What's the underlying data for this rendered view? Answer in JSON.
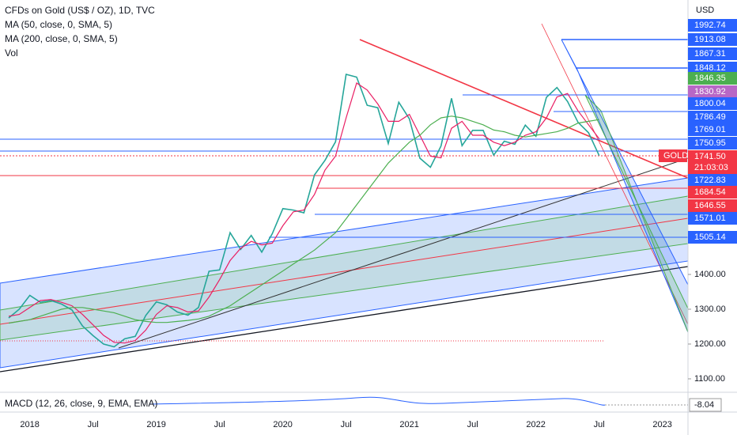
{
  "chart_data": {
    "type": "line",
    "title": "CFDs on Gold (US$ / OZ), 1D, TVC",
    "volume_label": "Vol",
    "currency": "USD",
    "symbol": "GOLD",
    "countdown": "21:03:03",
    "macd_label": "MACD (12, 26, close, 9, EMA, EMA)",
    "macd_value": -8.04,
    "categories": [
      null,
      null,
      "2018",
      null,
      null,
      null,
      null,
      null,
      "Jul",
      null,
      null,
      null,
      null,
      null,
      "2019",
      null,
      null,
      null,
      null,
      null,
      "Jul",
      null,
      null,
      null,
      null,
      null,
      "2020",
      null,
      null,
      null,
      null,
      null,
      "Jul",
      null,
      null,
      null,
      null,
      null,
      "2021",
      null,
      null,
      null,
      null,
      null,
      "Jul",
      null,
      null,
      null,
      null,
      null,
      "2022",
      null,
      null,
      null,
      null,
      null,
      "Jul",
      null,
      null,
      null,
      null,
      null,
      "2023",
      null,
      null
    ],
    "series": [
      {
        "name": null,
        "color": "#26a69a",
        "values": [
          1275,
          1300,
          1340,
          1320,
          1325,
          1315,
          1298,
          1252,
          1224,
          1200,
          1192,
          1215,
          1222,
          1282,
          1321,
          1313,
          1292,
          1283,
          1305,
          1409,
          1413,
          1520,
          1472,
          1512,
          1464,
          1517,
          1589,
          1585,
          1577,
          1686,
          1728,
          1781,
          1975,
          1967,
          1886,
          1879,
          1776,
          1895,
          1847,
          1734,
          1708,
          1769,
          1906,
          1770,
          1814,
          1814,
          1743,
          1783,
          1774,
          1829,
          1797,
          1909,
          1937,
          1897,
          1837,
          1807,
          1741.5,
          null,
          null,
          null,
          null,
          null,
          null,
          null,
          null
        ]
      },
      {
        "name": "MA (50, close, 0, SMA, 5)",
        "color": "#e91e63",
        "values": [
          1280,
          1285,
          1305,
          1325,
          1328,
          1320,
          1310,
          1285,
          1255,
          1225,
          1205,
          1203,
          1210,
          1240,
          1285,
          1310,
          1305,
          1292,
          1295,
          1335,
          1385,
          1440,
          1475,
          1495,
          1485,
          1490,
          1540,
          1580,
          1585,
          1630,
          1700,
          1740,
          1850,
          1950,
          1930,
          1890,
          1840,
          1840,
          1860,
          1800,
          1740,
          1735,
          1820,
          1840,
          1800,
          1800,
          1780,
          1770,
          1780,
          1800,
          1810,
          1850,
          1910,
          1920,
          1870,
          1830,
          1790,
          null,
          null,
          null,
          null,
          null,
          null,
          null,
          null
        ]
      },
      {
        "name": "MA (200, close, 0, SMA, 5)",
        "color": "#4caf50",
        "values": [
          1260,
          1265,
          1270,
          1280,
          1290,
          1300,
          1305,
          1305,
          1300,
          1295,
          1290,
          1280,
          1270,
          1265,
          1262,
          1262,
          1265,
          1268,
          1272,
          1280,
          1295,
          1310,
          1330,
          1350,
          1370,
          1390,
          1410,
          1430,
          1450,
          1470,
          1495,
          1520,
          1560,
          1600,
          1640,
          1680,
          1720,
          1750,
          1780,
          1800,
          1830,
          1850,
          1855,
          1850,
          1840,
          1830,
          1815,
          1810,
          1800,
          1795,
          1800,
          1805,
          1810,
          1820,
          1835,
          1840,
          1845,
          null,
          null,
          null,
          null,
          null,
          null,
          null,
          null
        ]
      }
    ],
    "ylim": [
      1063.6,
      2188.6
    ],
    "yticks": [
      {
        "value": 1400,
        "label": "1400.00"
      },
      {
        "value": 1300,
        "label": "1300.00"
      },
      {
        "value": 1200,
        "label": "1200.00"
      },
      {
        "value": 1100,
        "label": "1100.00"
      }
    ],
    "price_labels": [
      {
        "value": 1992.74,
        "color": "#2962ff"
      },
      {
        "value": 1913.08,
        "color": "#2962ff"
      },
      {
        "value": 1867.31,
        "color": "#2962ff"
      },
      {
        "value": 1848.12,
        "color": "#2962ff"
      },
      {
        "value": 1846.35,
        "color": "#4caf50"
      },
      {
        "value": 1830.92,
        "color": "#b867c6"
      },
      {
        "value": 1800.04,
        "color": "#2962ff"
      },
      {
        "value": 1786.49,
        "color": "#2962ff"
      },
      {
        "value": 1769.01,
        "color": "#2962ff"
      },
      {
        "value": 1750.95,
        "color": "#2962ff"
      },
      {
        "value": {
          "value": 1741.5,
          "label": "1741.50"
        },
        "color": "#f23645"
      },
      {
        "value": 1722.83,
        "color": "#2962ff"
      },
      {
        "value": 1684.54,
        "color": "#f23645"
      },
      {
        "value": 1646.55,
        "color": "#f23645"
      },
      {
        "value": 1571.01,
        "color": "#2962ff"
      },
      {
        "value": 1505.14,
        "color": "#2962ff"
      }
    ]
  }
}
